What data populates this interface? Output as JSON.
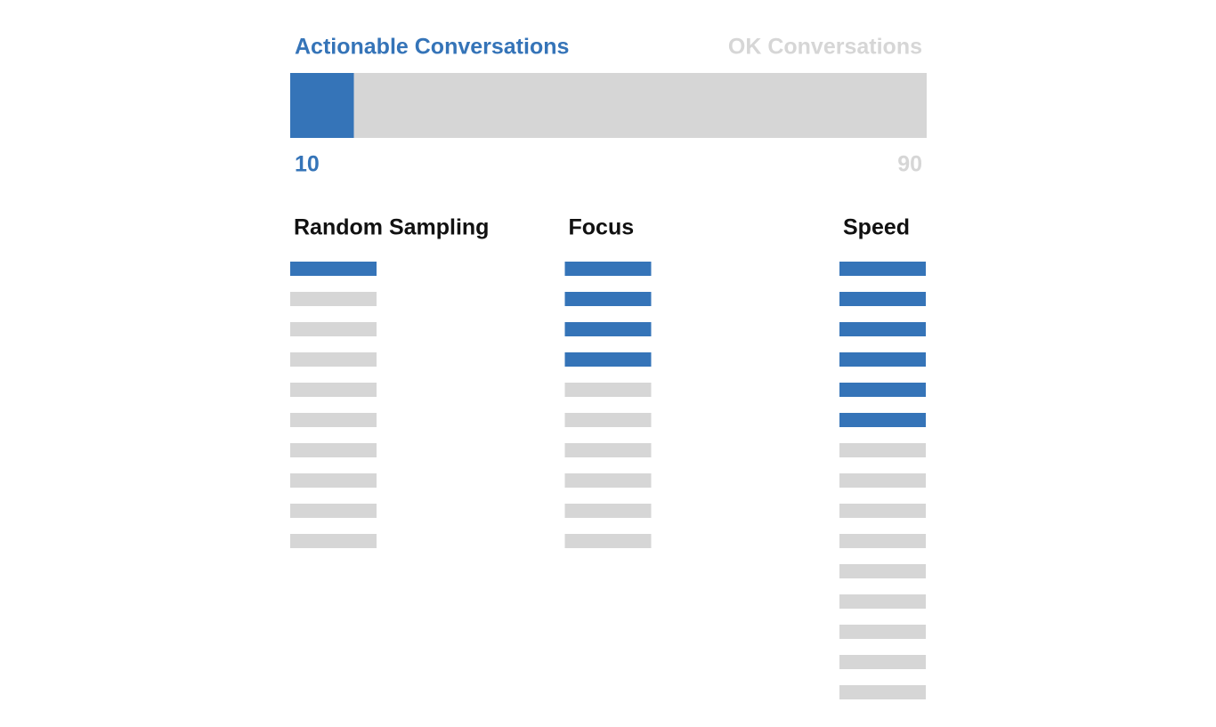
{
  "chart_data": {
    "type": "stacked-bar",
    "series": [
      {
        "name": "Actionable Conversations",
        "color": "#3574b8",
        "values": [
          10
        ]
      },
      {
        "name": "OK Conversations",
        "color": "#d6d6d6",
        "values": [
          90
        ]
      }
    ],
    "groups": [
      {
        "title": "Random Sampling",
        "actionable": 1,
        "ok": 9
      },
      {
        "title": "Focus",
        "actionable": 4,
        "ok": 6
      },
      {
        "title": "Speed",
        "actionable": 6,
        "ok": 9
      }
    ]
  }
}
